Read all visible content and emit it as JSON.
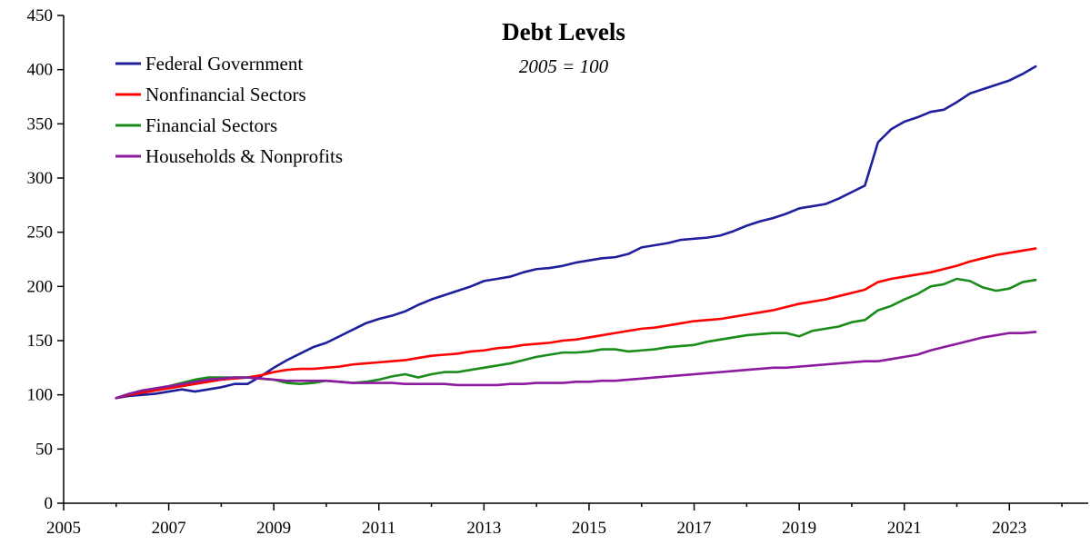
{
  "chart_data": {
    "type": "line",
    "title": "Debt Levels",
    "subtitle": "2005 = 100",
    "xlabel": "",
    "ylabel": "",
    "xlim": [
      2005,
      2024.5
    ],
    "ylim": [
      0,
      450
    ],
    "x_ticks": [
      2005,
      2007,
      2009,
      2011,
      2013,
      2015,
      2017,
      2019,
      2021,
      2023
    ],
    "y_ticks": [
      0,
      50,
      100,
      150,
      200,
      250,
      300,
      350,
      400,
      450
    ],
    "grid": false,
    "legend_position": "top-left",
    "series": [
      {
        "name": "Federal Government",
        "color": "#1f1f9e",
        "x": [
          2006.0,
          2006.25,
          2006.5,
          2006.75,
          2007.0,
          2007.25,
          2007.5,
          2007.75,
          2008.0,
          2008.25,
          2008.5,
          2008.75,
          2009.0,
          2009.25,
          2009.5,
          2009.75,
          2010.0,
          2010.25,
          2010.5,
          2010.75,
          2011.0,
          2011.25,
          2011.5,
          2011.75,
          2012.0,
          2012.25,
          2012.5,
          2012.75,
          2013.0,
          2013.25,
          2013.5,
          2013.75,
          2014.0,
          2014.25,
          2014.5,
          2014.75,
          2015.0,
          2015.25,
          2015.5,
          2015.75,
          2016.0,
          2016.25,
          2016.5,
          2016.75,
          2017.0,
          2017.25,
          2017.5,
          2017.75,
          2018.0,
          2018.25,
          2018.5,
          2018.75,
          2019.0,
          2019.25,
          2019.5,
          2019.75,
          2020.0,
          2020.25,
          2020.5,
          2020.75,
          2021.0,
          2021.25,
          2021.5,
          2021.75,
          2022.0,
          2022.25,
          2022.5,
          2022.75,
          2023.0,
          2023.25,
          2023.5
        ],
        "values": [
          97,
          99,
          100,
          101,
          103,
          105,
          103,
          105,
          107,
          110,
          110,
          117,
          125,
          132,
          138,
          144,
          148,
          154,
          160,
          166,
          170,
          173,
          177,
          183,
          188,
          192,
          196,
          200,
          205,
          207,
          209,
          213,
          216,
          217,
          219,
          222,
          224,
          226,
          227,
          230,
          236,
          238,
          240,
          243,
          244,
          245,
          247,
          251,
          256,
          260,
          263,
          267,
          272,
          274,
          276,
          281,
          287,
          293,
          333,
          345,
          352,
          356,
          361,
          363,
          370,
          378,
          382,
          386,
          390,
          396,
          403
        ]
      },
      {
        "name": "Nonfinancial Sectors",
        "color": "#ff0000",
        "x": [
          2006.0,
          2006.25,
          2006.5,
          2006.75,
          2007.0,
          2007.25,
          2007.5,
          2007.75,
          2008.0,
          2008.25,
          2008.5,
          2008.75,
          2009.0,
          2009.25,
          2009.5,
          2009.75,
          2010.0,
          2010.25,
          2010.5,
          2010.75,
          2011.0,
          2011.25,
          2011.5,
          2011.75,
          2012.0,
          2012.25,
          2012.5,
          2012.75,
          2013.0,
          2013.25,
          2013.5,
          2013.75,
          2014.0,
          2014.25,
          2014.5,
          2014.75,
          2015.0,
          2015.25,
          2015.5,
          2015.75,
          2016.0,
          2016.25,
          2016.5,
          2016.75,
          2017.0,
          2017.25,
          2017.5,
          2017.75,
          2018.0,
          2018.25,
          2018.5,
          2018.75,
          2019.0,
          2019.25,
          2019.5,
          2019.75,
          2020.0,
          2020.25,
          2020.5,
          2020.75,
          2021.0,
          2021.25,
          2021.5,
          2021.75,
          2022.0,
          2022.25,
          2022.5,
          2022.75,
          2023.0,
          2023.25,
          2023.5
        ],
        "values": [
          97,
          100,
          102,
          104,
          106,
          108,
          110,
          112,
          114,
          115,
          116,
          118,
          121,
          123,
          124,
          124,
          125,
          126,
          128,
          129,
          130,
          131,
          132,
          134,
          136,
          137,
          138,
          140,
          141,
          143,
          144,
          146,
          147,
          148,
          150,
          151,
          153,
          155,
          157,
          159,
          161,
          162,
          164,
          166,
          168,
          169,
          170,
          172,
          174,
          176,
          178,
          181,
          184,
          186,
          188,
          191,
          194,
          197,
          204,
          207,
          209,
          211,
          213,
          216,
          219,
          223,
          226,
          229,
          231,
          233,
          235
        ]
      },
      {
        "name": "Financial Sectors",
        "color": "#1a8c1a",
        "x": [
          2006.0,
          2006.25,
          2006.5,
          2006.75,
          2007.0,
          2007.25,
          2007.5,
          2007.75,
          2008.0,
          2008.25,
          2008.5,
          2008.75,
          2009.0,
          2009.25,
          2009.5,
          2009.75,
          2010.0,
          2010.25,
          2010.5,
          2010.75,
          2011.0,
          2011.25,
          2011.5,
          2011.75,
          2012.0,
          2012.25,
          2012.5,
          2012.75,
          2013.0,
          2013.25,
          2013.5,
          2013.75,
          2014.0,
          2014.25,
          2014.5,
          2014.75,
          2015.0,
          2015.25,
          2015.5,
          2015.75,
          2016.0,
          2016.25,
          2016.5,
          2016.75,
          2017.0,
          2017.25,
          2017.5,
          2017.75,
          2018.0,
          2018.25,
          2018.5,
          2018.75,
          2019.0,
          2019.25,
          2019.5,
          2019.75,
          2020.0,
          2020.25,
          2020.5,
          2020.75,
          2021.0,
          2021.25,
          2021.5,
          2021.75,
          2022.0,
          2022.25,
          2022.5,
          2022.75,
          2023.0,
          2023.25,
          2023.5
        ],
        "values": [
          97,
          101,
          104,
          106,
          108,
          111,
          114,
          116,
          116,
          116,
          116,
          115,
          114,
          111,
          110,
          111,
          113,
          112,
          111,
          112,
          114,
          117,
          119,
          116,
          119,
          121,
          121,
          123,
          125,
          127,
          129,
          132,
          135,
          137,
          139,
          139,
          140,
          142,
          142,
          140,
          141,
          142,
          144,
          145,
          146,
          149,
          151,
          153,
          155,
          156,
          157,
          157,
          154,
          159,
          161,
          163,
          167,
          169,
          178,
          182,
          188,
          193,
          200,
          202,
          207,
          205,
          199,
          196,
          198,
          204,
          206
        ]
      },
      {
        "name": "Households & Nonprofits",
        "color": "#8b1a9e",
        "x": [
          2006.0,
          2006.25,
          2006.5,
          2006.75,
          2007.0,
          2007.25,
          2007.5,
          2007.75,
          2008.0,
          2008.25,
          2008.5,
          2008.75,
          2009.0,
          2009.25,
          2009.5,
          2009.75,
          2010.0,
          2010.25,
          2010.5,
          2010.75,
          2011.0,
          2011.25,
          2011.5,
          2011.75,
          2012.0,
          2012.25,
          2012.5,
          2012.75,
          2013.0,
          2013.25,
          2013.5,
          2013.75,
          2014.0,
          2014.25,
          2014.5,
          2014.75,
          2015.0,
          2015.25,
          2015.5,
          2015.75,
          2016.0,
          2016.25,
          2016.5,
          2016.75,
          2017.0,
          2017.25,
          2017.5,
          2017.75,
          2018.0,
          2018.25,
          2018.5,
          2018.75,
          2019.0,
          2019.25,
          2019.5,
          2019.75,
          2020.0,
          2020.25,
          2020.5,
          2020.75,
          2021.0,
          2021.25,
          2021.5,
          2021.75,
          2022.0,
          2022.25,
          2022.5,
          2022.75,
          2023.0,
          2023.25,
          2023.5
        ],
        "values": [
          97,
          101,
          104,
          106,
          108,
          110,
          112,
          114,
          115,
          116,
          116,
          115,
          114,
          113,
          113,
          113,
          113,
          112,
          111,
          111,
          111,
          111,
          110,
          110,
          110,
          110,
          109,
          109,
          109,
          109,
          110,
          110,
          111,
          111,
          111,
          112,
          112,
          113,
          113,
          114,
          115,
          116,
          117,
          118,
          119,
          120,
          121,
          122,
          123,
          124,
          125,
          125,
          126,
          127,
          128,
          129,
          130,
          131,
          131,
          133,
          135,
          137,
          141,
          144,
          147,
          150,
          153,
          155,
          157,
          157,
          158
        ]
      }
    ]
  }
}
